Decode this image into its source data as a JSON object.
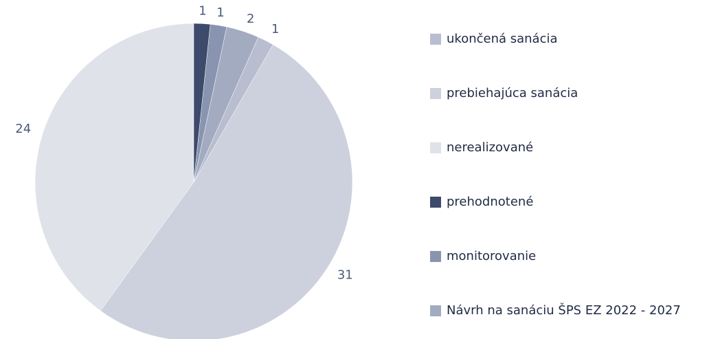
{
  "chart_data": {
    "type": "pie",
    "categories": [
      "ukončená sanácia",
      "prebiehajúca sanácia",
      "nerealizované",
      "prehodnotené",
      "monitorovanie",
      "Návrh na sanáciu ŠPS EZ 2022 - 2027"
    ],
    "values": [
      1,
      31,
      24,
      1,
      1,
      2
    ],
    "colors": [
      "#b8bed0",
      "#cdd1dd",
      "#e0e2ea",
      "#3d4a6b",
      "#8894b0",
      "#a2abc0"
    ],
    "legend": "right"
  }
}
